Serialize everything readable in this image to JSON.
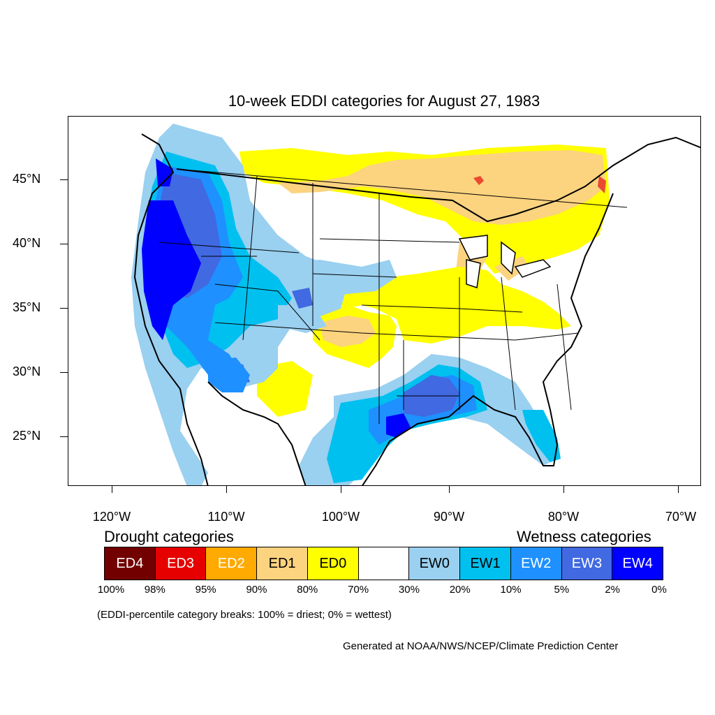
{
  "title": "10-week EDDI categories for August 27, 1983",
  "map": {
    "region": "contiguous-united-states",
    "projection_extent": {
      "lon_min": -124,
      "lon_max": -68,
      "lat_min": 20,
      "lat_max": 50
    },
    "lat_labels": [
      "45°N",
      "40°N",
      "35°N",
      "30°N",
      "25°N"
    ],
    "lon_labels": [
      "120°W",
      "110°W",
      "100°W",
      "90°W",
      "80°W",
      "70°W"
    ]
  },
  "legend": {
    "drought_title": "Drought categories",
    "wetness_title": "Wetness categories",
    "categories": [
      {
        "label": "ED4",
        "color": "#730000",
        "text_color": "#ffffff"
      },
      {
        "label": "ED3",
        "color": "#e60000",
        "text_color": "#ffffff"
      },
      {
        "label": "ED2",
        "color": "#ffaa00",
        "text_color": "#ffffff"
      },
      {
        "label": "ED1",
        "color": "#fcd37f",
        "text_color": "#000000"
      },
      {
        "label": "ED0",
        "color": "#ffff00",
        "text_color": "#000000"
      },
      {
        "label": "",
        "color": "#ffffff",
        "text_color": "#000000"
      },
      {
        "label": "EW0",
        "color": "#9ad0f0",
        "text_color": "#000000"
      },
      {
        "label": "EW1",
        "color": "#00c0f0",
        "text_color": "#000000"
      },
      {
        "label": "EW2",
        "color": "#1e90ff",
        "text_color": "#ffffff"
      },
      {
        "label": "EW3",
        "color": "#4169e1",
        "text_color": "#ffffff"
      },
      {
        "label": "EW4",
        "color": "#0000ff",
        "text_color": "#ffffff"
      }
    ],
    "breaks": [
      "100%",
      "98%",
      "95%",
      "90%",
      "80%",
      "70%",
      "30%",
      "20%",
      "10%",
      "5%",
      "2%",
      "0%"
    ]
  },
  "note": "(EDDI-percentile category breaks: 100% = driest; 0% = wettest)",
  "credit": "Generated at NOAA/NWS/NCEP/Climate Prediction Center"
}
